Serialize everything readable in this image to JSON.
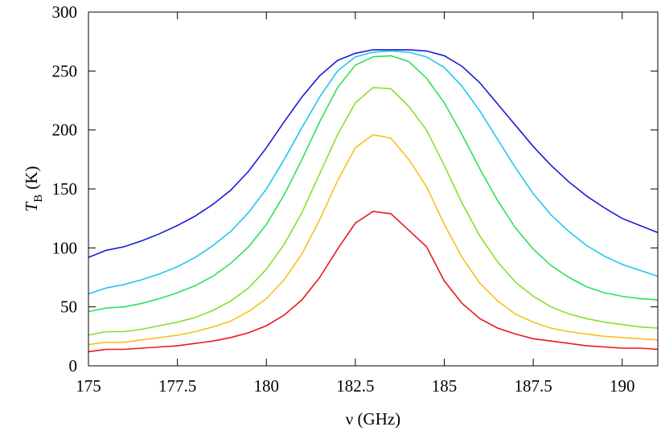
{
  "chart_data": {
    "type": "line",
    "xlabel": "ν (GHz)",
    "ylabel": "T",
    "ylabel_sub": "B",
    "ylabel_unit": "(K)",
    "xlim": [
      175,
      191
    ],
    "xticks": [
      175,
      177.5,
      180,
      182.5,
      185,
      187.5,
      190
    ],
    "ylim": [
      0,
      300
    ],
    "yticks": [
      0,
      50,
      100,
      150,
      200,
      250,
      300
    ],
    "x": [
      175,
      175.5,
      176,
      176.5,
      177,
      177.5,
      178,
      178.5,
      179,
      179.5,
      180,
      180.5,
      181,
      181.5,
      182,
      182.5,
      183,
      183.5,
      184,
      184.5,
      185,
      185.5,
      186,
      186.5,
      187,
      187.5,
      188,
      188.5,
      189,
      189.5,
      190,
      190.5,
      191
    ],
    "series": [
      {
        "color": "#1a1ad6",
        "values": [
          92,
          98,
          101,
          106,
          112,
          119,
          127,
          137,
          149,
          165,
          185,
          207,
          228,
          246,
          259,
          265,
          268,
          268,
          268,
          267,
          263,
          254,
          240,
          222,
          204,
          186,
          170,
          156,
          144,
          134,
          125,
          119,
          113
        ]
      },
      {
        "color": "#1ec8ee",
        "values": [
          61,
          66,
          69,
          73,
          78,
          84,
          92,
          102,
          114,
          130,
          150,
          175,
          202,
          228,
          250,
          262,
          266,
          267,
          266,
          262,
          253,
          237,
          216,
          192,
          168,
          146,
          128,
          114,
          102,
          93,
          86,
          81,
          76
        ]
      },
      {
        "color": "#2ee05a",
        "values": [
          46,
          49,
          50,
          53,
          57,
          62,
          68,
          76,
          87,
          101,
          120,
          145,
          175,
          207,
          236,
          255,
          262,
          263,
          258,
          244,
          223,
          196,
          167,
          140,
          117,
          99,
          85,
          75,
          67,
          62,
          59,
          57,
          56
        ]
      },
      {
        "color": "#86e02a",
        "values": [
          26,
          29,
          29,
          31,
          34,
          37,
          41,
          47,
          55,
          66,
          82,
          103,
          130,
          163,
          196,
          223,
          236,
          235,
          220,
          200,
          170,
          138,
          110,
          88,
          71,
          59,
          50,
          44,
          40,
          37,
          35,
          33,
          32
        ]
      },
      {
        "color": "#f5c21a",
        "values": [
          18,
          20,
          20,
          22,
          24,
          26,
          29,
          33,
          38,
          46,
          57,
          73,
          95,
          124,
          157,
          185,
          196,
          193,
          175,
          152,
          120,
          92,
          70,
          55,
          44,
          37,
          32,
          29,
          27,
          25,
          24,
          23,
          22
        ]
      },
      {
        "color": "#e81a1a",
        "values": [
          12,
          14,
          14,
          15,
          16,
          17,
          19,
          21,
          24,
          28,
          34,
          43,
          56,
          75,
          99,
          121,
          131,
          129,
          115,
          101,
          72,
          53,
          40,
          32,
          27,
          23,
          21,
          19,
          17,
          16,
          15,
          15,
          14
        ]
      }
    ]
  }
}
